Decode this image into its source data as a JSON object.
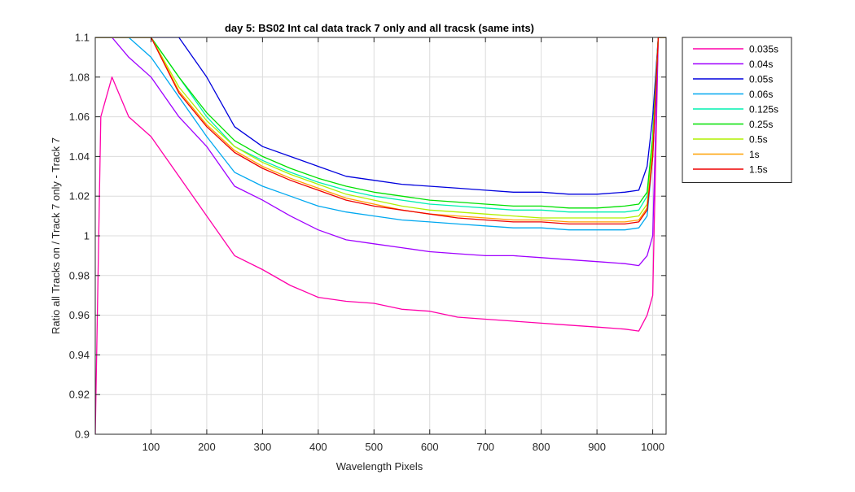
{
  "chart_data": {
    "type": "line",
    "title": "day 5: BS02   Int cal data track 7 only and all tracsk (same ints)",
    "xlabel": "Wavelength Pixels",
    "ylabel": "Ratio all Tracks on / Track 7 only - Track 7",
    "xlim": [
      0,
      1024
    ],
    "ylim": [
      0.9,
      1.1
    ],
    "xticks": [
      100,
      200,
      300,
      400,
      500,
      600,
      700,
      800,
      900,
      1000
    ],
    "xtick_labels": [
      "100",
      "200",
      "300",
      "400",
      "500",
      "600",
      "700",
      "800",
      "900",
      "1000"
    ],
    "yticks": [
      0.9,
      0.92,
      0.94,
      0.96,
      0.98,
      1.0,
      1.02,
      1.04,
      1.06,
      1.08,
      1.1
    ],
    "ytick_labels": [
      "0.9",
      "0.92",
      "0.94",
      "0.96",
      "0.98",
      "1",
      "1.02",
      "1.04",
      "1.06",
      "1.08",
      "1.1"
    ],
    "grid": true,
    "legend_position": "outside-top-right",
    "series": [
      {
        "name": "0.035s",
        "color": "#ff00aa",
        "x": [
          0,
          10,
          30,
          60,
          100,
          150,
          200,
          250,
          300,
          350,
          400,
          450,
          500,
          550,
          600,
          650,
          700,
          750,
          800,
          850,
          900,
          950,
          975,
          990,
          1000,
          1010,
          1024
        ],
        "y": [
          0.9,
          1.06,
          1.08,
          1.06,
          1.05,
          1.03,
          1.01,
          0.99,
          0.983,
          0.975,
          0.969,
          0.967,
          0.966,
          0.963,
          0.962,
          0.959,
          0.958,
          0.957,
          0.956,
          0.955,
          0.954,
          0.953,
          0.952,
          0.96,
          0.97,
          1.1,
          1.1
        ]
      },
      {
        "name": "0.04s",
        "color": "#a000ff",
        "x": [
          0,
          10,
          30,
          60,
          100,
          150,
          200,
          250,
          300,
          350,
          400,
          450,
          500,
          550,
          600,
          650,
          700,
          750,
          800,
          850,
          900,
          950,
          975,
          990,
          1000,
          1010,
          1024
        ],
        "y": [
          1.1,
          1.1,
          1.1,
          1.09,
          1.08,
          1.06,
          1.045,
          1.025,
          1.018,
          1.01,
          1.003,
          0.998,
          0.996,
          0.994,
          0.992,
          0.991,
          0.99,
          0.99,
          0.989,
          0.988,
          0.987,
          0.986,
          0.985,
          0.99,
          1.0,
          1.1,
          1.1
        ]
      },
      {
        "name": "0.05s",
        "color": "#0000dd",
        "x": [
          0,
          10,
          30,
          60,
          100,
          150,
          200,
          250,
          300,
          350,
          400,
          450,
          500,
          550,
          600,
          650,
          700,
          750,
          800,
          850,
          900,
          950,
          975,
          990,
          1000,
          1010,
          1024
        ],
        "y": [
          1.1,
          1.1,
          1.1,
          1.1,
          1.1,
          1.1,
          1.08,
          1.055,
          1.045,
          1.04,
          1.035,
          1.03,
          1.028,
          1.026,
          1.025,
          1.024,
          1.023,
          1.022,
          1.022,
          1.021,
          1.021,
          1.022,
          1.023,
          1.035,
          1.06,
          1.1,
          1.1
        ]
      },
      {
        "name": "0.06s",
        "color": "#00a8f0",
        "x": [
          0,
          10,
          30,
          60,
          100,
          150,
          200,
          250,
          300,
          350,
          400,
          450,
          500,
          550,
          600,
          650,
          700,
          750,
          800,
          850,
          900,
          950,
          975,
          990,
          1000,
          1010,
          1024
        ],
        "y": [
          1.1,
          1.1,
          1.1,
          1.1,
          1.09,
          1.07,
          1.05,
          1.032,
          1.025,
          1.02,
          1.015,
          1.012,
          1.01,
          1.008,
          1.007,
          1.006,
          1.005,
          1.004,
          1.004,
          1.003,
          1.003,
          1.003,
          1.004,
          1.01,
          1.04,
          1.1,
          1.1
        ]
      },
      {
        "name": "0.125s",
        "color": "#00f0b0",
        "x": [
          0,
          10,
          30,
          60,
          100,
          150,
          200,
          250,
          300,
          350,
          400,
          450,
          500,
          550,
          600,
          650,
          700,
          750,
          800,
          850,
          900,
          950,
          975,
          990,
          1000,
          1010,
          1024
        ],
        "y": [
          1.1,
          1.1,
          1.1,
          1.1,
          1.1,
          1.08,
          1.06,
          1.045,
          1.038,
          1.032,
          1.027,
          1.023,
          1.02,
          1.018,
          1.016,
          1.015,
          1.014,
          1.013,
          1.013,
          1.012,
          1.012,
          1.012,
          1.013,
          1.02,
          1.05,
          1.1,
          1.1
        ]
      },
      {
        "name": "0.25s",
        "color": "#00e000",
        "x": [
          0,
          10,
          30,
          60,
          100,
          150,
          200,
          250,
          300,
          350,
          400,
          450,
          500,
          550,
          600,
          650,
          700,
          750,
          800,
          850,
          900,
          950,
          975,
          990,
          1000,
          1010,
          1024
        ],
        "y": [
          1.1,
          1.1,
          1.1,
          1.1,
          1.1,
          1.08,
          1.062,
          1.048,
          1.04,
          1.034,
          1.029,
          1.025,
          1.022,
          1.02,
          1.018,
          1.017,
          1.016,
          1.015,
          1.015,
          1.014,
          1.014,
          1.015,
          1.016,
          1.022,
          1.05,
          1.1,
          1.1
        ]
      },
      {
        "name": "0.5s",
        "color": "#b0f000",
        "x": [
          0,
          10,
          30,
          60,
          100,
          150,
          200,
          250,
          300,
          350,
          400,
          450,
          500,
          550,
          600,
          650,
          700,
          750,
          800,
          850,
          900,
          950,
          975,
          990,
          1000,
          1010,
          1024
        ],
        "y": [
          1.1,
          1.1,
          1.1,
          1.1,
          1.1,
          1.075,
          1.058,
          1.045,
          1.037,
          1.031,
          1.026,
          1.021,
          1.018,
          1.015,
          1.013,
          1.012,
          1.011,
          1.01,
          1.009,
          1.009,
          1.009,
          1.009,
          1.01,
          1.016,
          1.045,
          1.1,
          1.1
        ]
      },
      {
        "name": "1s",
        "color": "#ffa000",
        "x": [
          0,
          10,
          30,
          60,
          100,
          150,
          200,
          250,
          300,
          350,
          400,
          450,
          500,
          550,
          600,
          650,
          700,
          750,
          800,
          850,
          900,
          950,
          975,
          990,
          1000,
          1010,
          1024
        ],
        "y": [
          1.1,
          1.1,
          1.1,
          1.1,
          1.1,
          1.073,
          1.056,
          1.043,
          1.035,
          1.029,
          1.024,
          1.019,
          1.016,
          1.013,
          1.011,
          1.01,
          1.009,
          1.008,
          1.008,
          1.007,
          1.007,
          1.007,
          1.008,
          1.014,
          1.04,
          1.1,
          1.1
        ]
      },
      {
        "name": "1.5s",
        "color": "#ee0000",
        "x": [
          0,
          10,
          30,
          60,
          100,
          150,
          200,
          250,
          300,
          350,
          400,
          450,
          500,
          550,
          600,
          650,
          700,
          750,
          800,
          850,
          900,
          950,
          975,
          990,
          1000,
          1010,
          1024
        ],
        "y": [
          1.1,
          1.1,
          1.1,
          1.1,
          1.1,
          1.072,
          1.055,
          1.042,
          1.034,
          1.028,
          1.023,
          1.018,
          1.015,
          1.013,
          1.011,
          1.009,
          1.008,
          1.007,
          1.007,
          1.006,
          1.006,
          1.006,
          1.007,
          1.013,
          1.04,
          1.1,
          1.1
        ]
      }
    ]
  }
}
